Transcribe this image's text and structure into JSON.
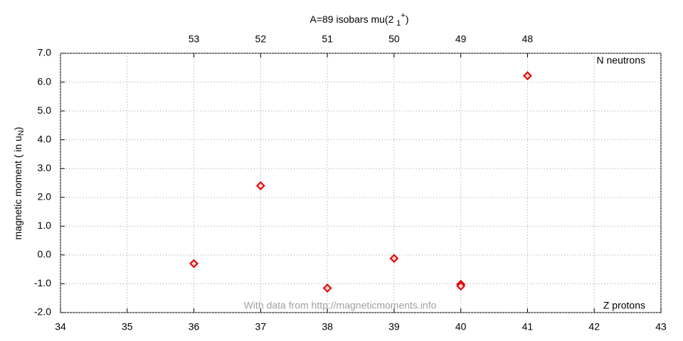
{
  "chart_data": {
    "type": "scatter",
    "title": {
      "text": "A=89 isobars mu(2 ",
      "subscript": "1",
      "superscript": "+",
      "suffix": ")"
    },
    "y_label": {
      "text": "magnetic moment ( in u",
      "subscript": "N",
      "suffix": ")"
    },
    "x_label": "Z protons",
    "x2_label": "N neutrons",
    "annotation": "With data from http://magneticmoments.info",
    "xlim": [
      34,
      43
    ],
    "xticks": [
      34,
      35,
      36,
      37,
      38,
      39,
      40,
      41,
      42,
      43
    ],
    "x2lim": [
      55,
      46
    ],
    "x2ticks": [
      53,
      52,
      51,
      50,
      49,
      48
    ],
    "ylim": [
      -2,
      7
    ],
    "yticks": [
      {
        "value": -2,
        "label": "-2.0"
      },
      {
        "value": -1,
        "label": "-1.0"
      },
      {
        "value": 0,
        "label": "0.0"
      },
      {
        "value": 1,
        "label": "1.0"
      },
      {
        "value": 2,
        "label": "2.0"
      },
      {
        "value": 3,
        "label": "3.0"
      },
      {
        "value": 4,
        "label": "4.0"
      },
      {
        "value": 5,
        "label": "5.0"
      },
      {
        "value": 6,
        "label": "6.0"
      },
      {
        "value": 7,
        "label": "7.0"
      }
    ],
    "grid": true,
    "color": "#e00000",
    "x": [
      36,
      37,
      38,
      39,
      40,
      40,
      41
    ],
    "values": [
      -0.3,
      2.4,
      -1.15,
      -0.12,
      -1.02,
      -1.08,
      6.22
    ]
  }
}
